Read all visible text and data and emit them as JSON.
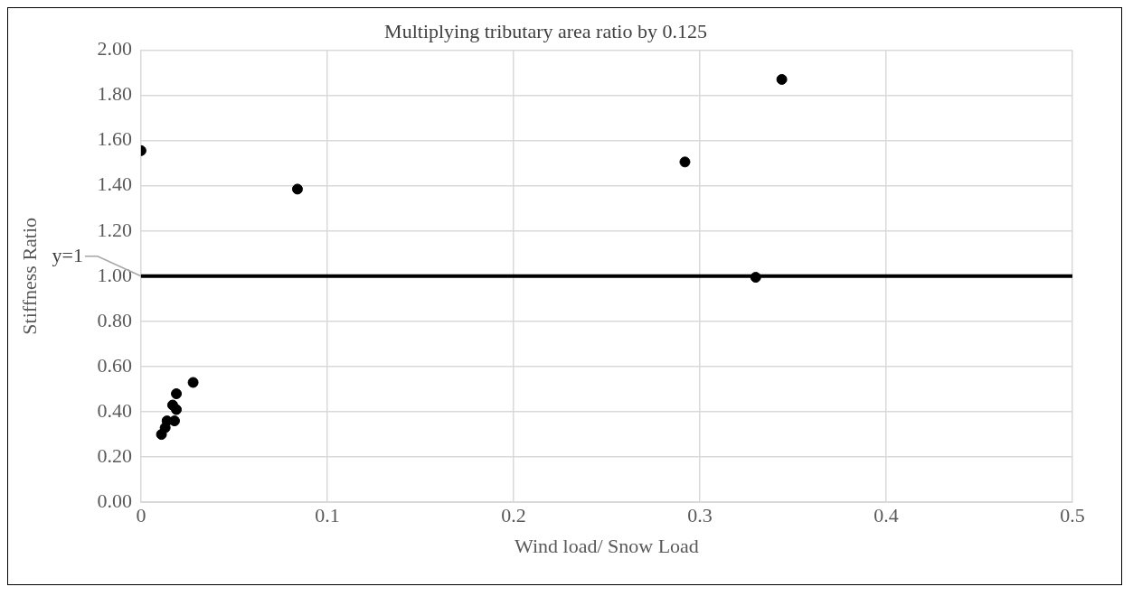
{
  "chart_data": {
    "type": "scatter",
    "title": "Multiplying tributary area ratio by 0.125",
    "xlabel": "Wind load/ Snow Load",
    "ylabel": "Stiffness Ratio",
    "x": [
      0,
      0.084,
      0.292,
      0.33,
      0.344,
      0.011,
      0.013,
      0.014,
      0.018,
      0.017,
      0.019,
      0.019,
      0.028
    ],
    "series": [
      {
        "color": "#000000",
        "values": [
          1.555,
          1.385,
          1.505,
          0.995,
          1.87,
          0.3,
          0.33,
          0.36,
          0.36,
          0.43,
          0.41,
          0.48,
          0.53
        ]
      }
    ],
    "xlim": [
      0,
      0.5
    ],
    "xticks": [
      0,
      0.1,
      0.2,
      0.3,
      0.4,
      0.5
    ],
    "ylim": [
      0,
      2
    ],
    "yticks": [
      {
        "value": 0,
        "label": "0.00"
      },
      {
        "value": 0.2,
        "label": "0.20"
      },
      {
        "value": 0.4,
        "label": "0.40"
      },
      {
        "value": 0.6,
        "label": "0.60"
      },
      {
        "value": 0.8,
        "label": "0.80"
      },
      {
        "value": 1,
        "label": "1.00"
      },
      {
        "value": 1.2,
        "label": "1.20"
      },
      {
        "value": 1.4,
        "label": "1.40"
      },
      {
        "value": 1.6,
        "label": "1.60"
      },
      {
        "value": 1.8,
        "label": "1.80"
      },
      {
        "value": 2,
        "label": "2.00"
      }
    ],
    "ref_lines": [
      {
        "axis": "y",
        "value": 1,
        "label": "y=1",
        "color": "#000000"
      }
    ],
    "grid": true,
    "legend": false,
    "marker": "circle"
  }
}
